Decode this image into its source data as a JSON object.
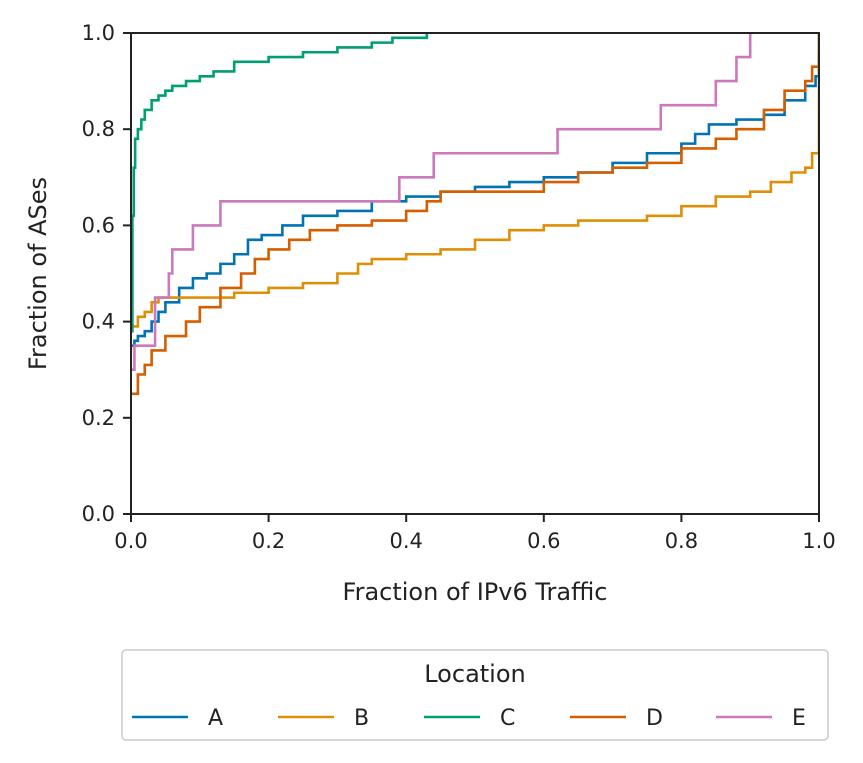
{
  "chart_data": {
    "type": "line",
    "subtype": "ecdf-step",
    "xlabel": "Fraction of IPv6 Traffic",
    "ylabel": "Fraction of ASes",
    "xlim": [
      0.0,
      1.0
    ],
    "ylim": [
      0.0,
      1.0
    ],
    "xticks": [
      "0.0",
      "0.2",
      "0.4",
      "0.6",
      "0.8",
      "1.0"
    ],
    "yticks": [
      "0.0",
      "0.2",
      "0.4",
      "0.6",
      "0.8",
      "1.0"
    ],
    "grid": false,
    "legend": {
      "title": "Location",
      "placement": "bottom-center-outside",
      "entries": [
        "A",
        "B",
        "C",
        "D",
        "E"
      ]
    },
    "series": [
      {
        "name": "A",
        "color": "#0173b2",
        "points": [
          [
            0.0,
            0.35
          ],
          [
            0.005,
            0.36
          ],
          [
            0.01,
            0.37
          ],
          [
            0.02,
            0.38
          ],
          [
            0.03,
            0.4
          ],
          [
            0.04,
            0.42
          ],
          [
            0.05,
            0.44
          ],
          [
            0.07,
            0.47
          ],
          [
            0.09,
            0.49
          ],
          [
            0.11,
            0.5
          ],
          [
            0.13,
            0.52
          ],
          [
            0.15,
            0.54
          ],
          [
            0.17,
            0.57
          ],
          [
            0.19,
            0.58
          ],
          [
            0.22,
            0.6
          ],
          [
            0.25,
            0.62
          ],
          [
            0.3,
            0.63
          ],
          [
            0.35,
            0.65
          ],
          [
            0.4,
            0.66
          ],
          [
            0.45,
            0.67
          ],
          [
            0.5,
            0.68
          ],
          [
            0.55,
            0.69
          ],
          [
            0.6,
            0.7
          ],
          [
            0.65,
            0.71
          ],
          [
            0.7,
            0.73
          ],
          [
            0.75,
            0.75
          ],
          [
            0.8,
            0.77
          ],
          [
            0.82,
            0.79
          ],
          [
            0.84,
            0.81
          ],
          [
            0.88,
            0.82
          ],
          [
            0.92,
            0.83
          ],
          [
            0.95,
            0.86
          ],
          [
            0.98,
            0.89
          ],
          [
            0.995,
            0.91
          ],
          [
            1.0,
            1.0
          ]
        ]
      },
      {
        "name": "B",
        "color": "#de8f05",
        "points": [
          [
            0.0,
            0.39
          ],
          [
            0.01,
            0.41
          ],
          [
            0.02,
            0.42
          ],
          [
            0.03,
            0.44
          ],
          [
            0.04,
            0.45
          ],
          [
            0.1,
            0.45
          ],
          [
            0.15,
            0.46
          ],
          [
            0.2,
            0.47
          ],
          [
            0.25,
            0.48
          ],
          [
            0.3,
            0.5
          ],
          [
            0.33,
            0.52
          ],
          [
            0.35,
            0.53
          ],
          [
            0.4,
            0.54
          ],
          [
            0.45,
            0.55
          ],
          [
            0.5,
            0.57
          ],
          [
            0.55,
            0.59
          ],
          [
            0.6,
            0.6
          ],
          [
            0.65,
            0.61
          ],
          [
            0.7,
            0.61
          ],
          [
            0.75,
            0.62
          ],
          [
            0.8,
            0.64
          ],
          [
            0.85,
            0.66
          ],
          [
            0.9,
            0.67
          ],
          [
            0.93,
            0.69
          ],
          [
            0.96,
            0.71
          ],
          [
            0.98,
            0.72
          ],
          [
            0.99,
            0.75
          ],
          [
            1.0,
            1.0
          ]
        ]
      },
      {
        "name": "C",
        "color": "#029e73",
        "points": [
          [
            0.0,
            0.38
          ],
          [
            0.002,
            0.62
          ],
          [
            0.004,
            0.72
          ],
          [
            0.006,
            0.78
          ],
          [
            0.01,
            0.8
          ],
          [
            0.015,
            0.82
          ],
          [
            0.02,
            0.84
          ],
          [
            0.03,
            0.86
          ],
          [
            0.04,
            0.87
          ],
          [
            0.05,
            0.88
          ],
          [
            0.06,
            0.89
          ],
          [
            0.08,
            0.9
          ],
          [
            0.1,
            0.91
          ],
          [
            0.12,
            0.92
          ],
          [
            0.15,
            0.94
          ],
          [
            0.2,
            0.95
          ],
          [
            0.25,
            0.96
          ],
          [
            0.3,
            0.97
          ],
          [
            0.35,
            0.98
          ],
          [
            0.38,
            0.99
          ],
          [
            0.43,
            1.0
          ]
        ]
      },
      {
        "name": "D",
        "color": "#d55e00",
        "points": [
          [
            0.0,
            0.25
          ],
          [
            0.01,
            0.29
          ],
          [
            0.02,
            0.31
          ],
          [
            0.03,
            0.34
          ],
          [
            0.05,
            0.37
          ],
          [
            0.08,
            0.4
          ],
          [
            0.1,
            0.43
          ],
          [
            0.13,
            0.47
          ],
          [
            0.16,
            0.5
          ],
          [
            0.18,
            0.53
          ],
          [
            0.2,
            0.55
          ],
          [
            0.23,
            0.57
          ],
          [
            0.26,
            0.59
          ],
          [
            0.3,
            0.6
          ],
          [
            0.35,
            0.61
          ],
          [
            0.4,
            0.63
          ],
          [
            0.43,
            0.65
          ],
          [
            0.45,
            0.67
          ],
          [
            0.5,
            0.67
          ],
          [
            0.55,
            0.67
          ],
          [
            0.6,
            0.69
          ],
          [
            0.65,
            0.71
          ],
          [
            0.7,
            0.72
          ],
          [
            0.75,
            0.73
          ],
          [
            0.8,
            0.76
          ],
          [
            0.85,
            0.78
          ],
          [
            0.88,
            0.8
          ],
          [
            0.92,
            0.84
          ],
          [
            0.95,
            0.88
          ],
          [
            0.98,
            0.9
          ],
          [
            0.99,
            0.93
          ],
          [
            1.0,
            0.96
          ]
        ]
      },
      {
        "name": "E",
        "color": "#cc78bc",
        "points": [
          [
            0.0,
            0.3
          ],
          [
            0.005,
            0.35
          ],
          [
            0.03,
            0.35
          ],
          [
            0.035,
            0.45
          ],
          [
            0.05,
            0.45
          ],
          [
            0.055,
            0.5
          ],
          [
            0.06,
            0.55
          ],
          [
            0.09,
            0.6
          ],
          [
            0.13,
            0.65
          ],
          [
            0.2,
            0.65
          ],
          [
            0.39,
            0.7
          ],
          [
            0.44,
            0.75
          ],
          [
            0.55,
            0.75
          ],
          [
            0.62,
            0.8
          ],
          [
            0.77,
            0.85
          ],
          [
            0.85,
            0.9
          ],
          [
            0.88,
            0.95
          ],
          [
            0.9,
            1.0
          ]
        ]
      }
    ]
  }
}
